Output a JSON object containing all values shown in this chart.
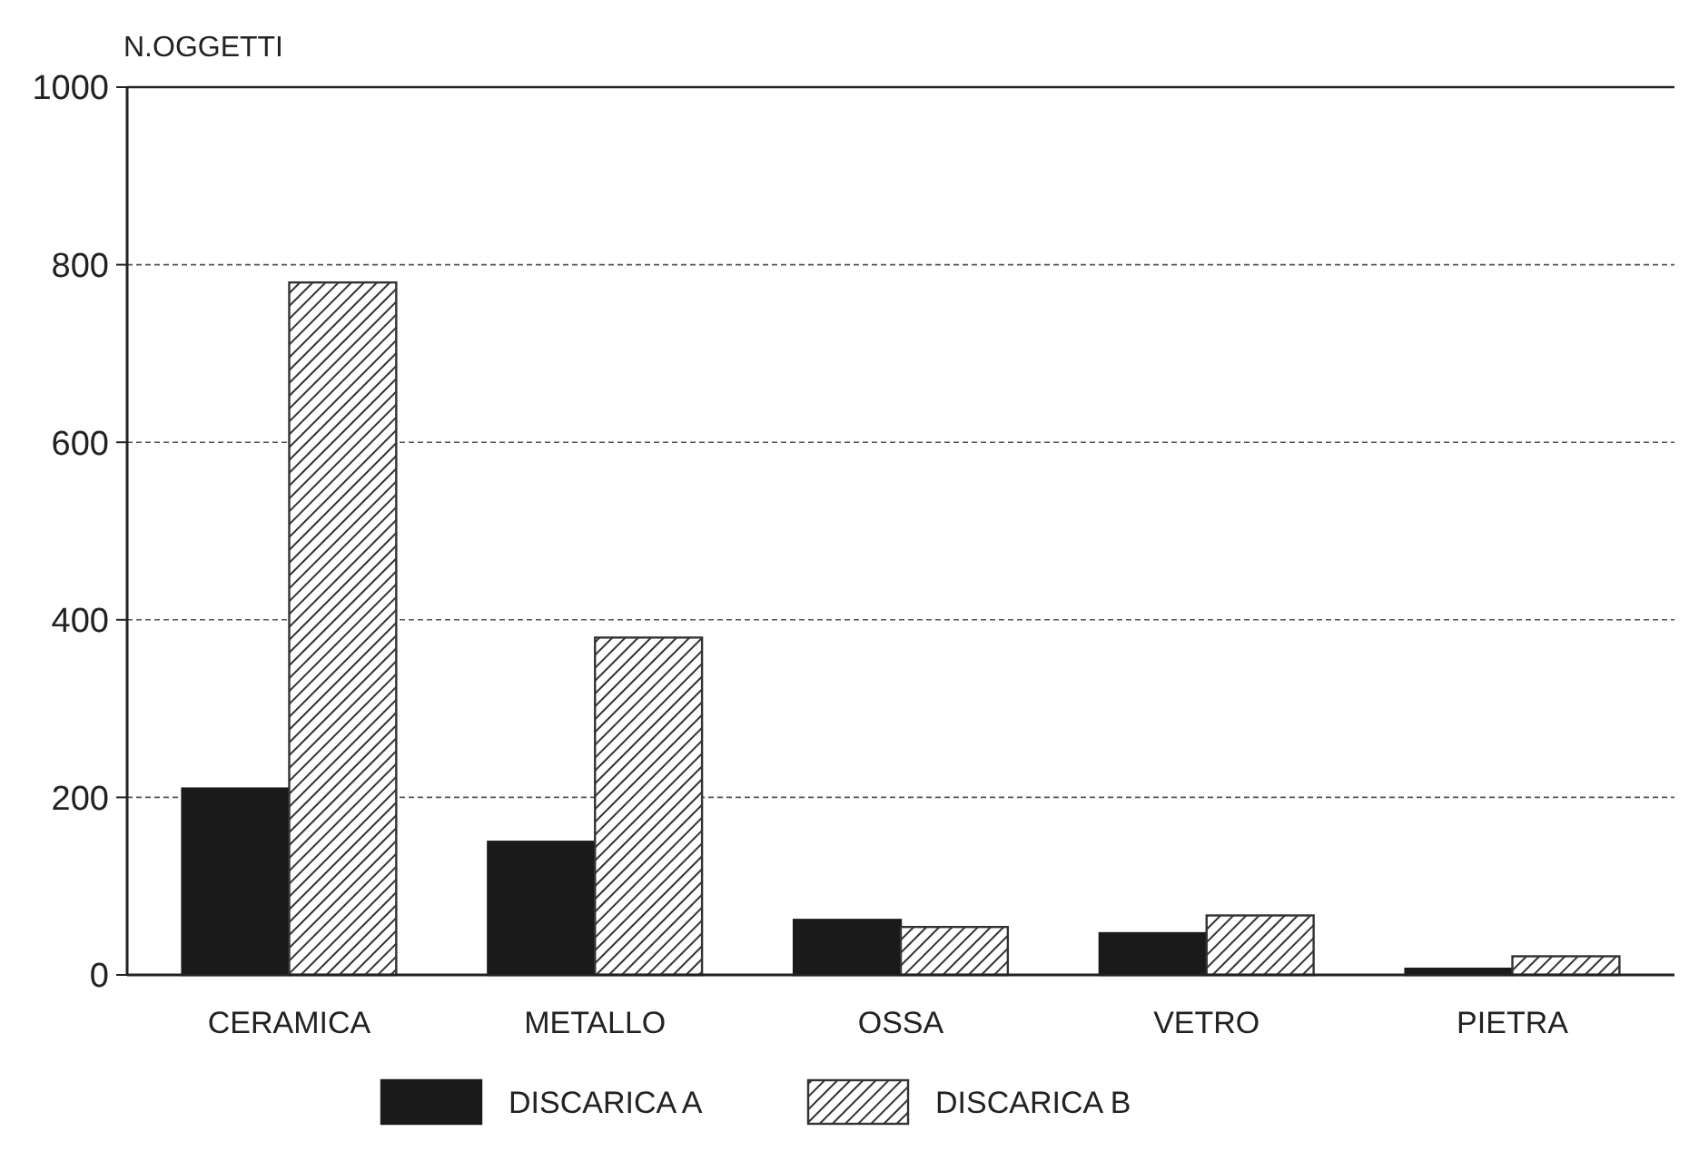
{
  "chart_data": {
    "type": "bar",
    "ylabel": "N.OGGETTI",
    "categories": [
      "CERAMICA",
      "METALLO",
      "OSSA",
      "VETRO",
      "PIETRA"
    ],
    "series": [
      {
        "name": "DISCARICA A",
        "color": "#1a1a1a",
        "values": [
          210,
          150,
          62,
          47,
          7
        ]
      },
      {
        "name": "DISCARICA B",
        "color": "#333333",
        "values": [
          780,
          380,
          54,
          67,
          21
        ]
      }
    ],
    "ylim": [
      0,
      1000
    ],
    "yticks": [
      0,
      200,
      400,
      600,
      800,
      1000
    ],
    "grid": "y",
    "legend": "bottom"
  }
}
